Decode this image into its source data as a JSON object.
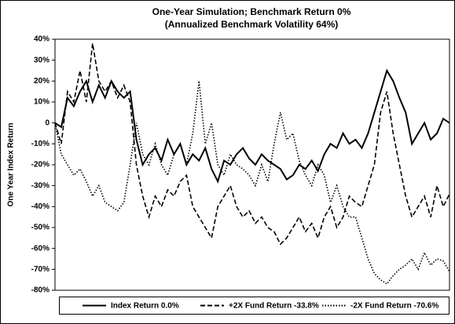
{
  "chart_data": {
    "type": "line",
    "title": "One-Year Simulation; Benchmark Return 0%",
    "subtitle": "(Annualized Benchmark Volatility 64%)",
    "y_label": "One Year Index Return",
    "categories": [
      null,
      null,
      null,
      null,
      null,
      null,
      null,
      null,
      null,
      null,
      null,
      null,
      null,
      null,
      null,
      null,
      null,
      null,
      null,
      null,
      null,
      null,
      null,
      null,
      null,
      null,
      null,
      null,
      null,
      null,
      null,
      null,
      null,
      null,
      null,
      null,
      null,
      null,
      null,
      null,
      null,
      null,
      null,
      null,
      null,
      null,
      null,
      null,
      null,
      null,
      null,
      null,
      null,
      null,
      null,
      null,
      null,
      null,
      null,
      null,
      null,
      null,
      null,
      null
    ],
    "ylim": [
      -80,
      40
    ],
    "yticks": [
      {
        "value": -80,
        "label": "-80%"
      },
      {
        "value": -70,
        "label": "-70%"
      },
      {
        "value": -60,
        "label": "-60%"
      },
      {
        "value": -50,
        "label": "-50%"
      },
      {
        "value": -40,
        "label": "-40%"
      },
      {
        "value": -30,
        "label": "-30%"
      },
      {
        "value": -20,
        "label": "-20%"
      },
      {
        "value": -10,
        "label": "-10%"
      },
      0,
      {
        "value": 10,
        "label": "10%"
      },
      {
        "value": 20,
        "label": "20%"
      },
      {
        "value": 30,
        "label": "30%"
      },
      {
        "value": 40,
        "label": "40%"
      }
    ],
    "legend": "bottom",
    "series": [
      {
        "name": "Index Return 0.0%",
        "color": "#000000",
        "style": "solid",
        "values": [
          0,
          -2,
          12,
          8,
          15,
          20,
          10,
          18,
          12,
          20,
          15,
          12,
          15,
          -8,
          -20,
          -15,
          -12,
          -18,
          -8,
          -15,
          -10,
          -20,
          -15,
          -18,
          -12,
          -22,
          -28,
          -18,
          -20,
          -15,
          -12,
          -17,
          -20,
          -15,
          -18,
          -20,
          -22,
          -27,
          -25,
          -20,
          -22,
          -18,
          -23,
          -15,
          -10,
          -12,
          -5,
          -10,
          -8,
          -12,
          -5,
          5,
          15,
          25,
          20,
          12,
          5,
          -10,
          -5,
          0,
          -8,
          -5,
          2,
          0
        ]
      },
      {
        "name": "+2X Fund Return -33.8%",
        "color": "#000000",
        "style": "dashed",
        "values": [
          0,
          -10,
          15,
          10,
          25,
          10,
          38,
          20,
          15,
          20,
          12,
          18,
          10,
          -20,
          -35,
          -45,
          -35,
          -40,
          -32,
          -35,
          -28,
          -25,
          -40,
          -45,
          -50,
          -55,
          -40,
          -35,
          -30,
          -40,
          -45,
          -42,
          -48,
          -45,
          -50,
          -52,
          -58,
          -55,
          -50,
          -45,
          -52,
          -48,
          -55,
          -45,
          -40,
          -50,
          -45,
          -35,
          -38,
          -40,
          -30,
          -20,
          5,
          15,
          -5,
          -20,
          -35,
          -45,
          -40,
          -35,
          -45,
          -30,
          -40,
          -34
        ]
      },
      {
        "name": "-2X Fund Return -70.6%",
        "color": "#000000",
        "style": "dotted",
        "values": [
          0,
          -15,
          -20,
          -25,
          -22,
          -28,
          -35,
          -30,
          -38,
          -40,
          -42,
          -38,
          -20,
          0,
          -15,
          -20,
          -10,
          -20,
          -25,
          -15,
          -10,
          -20,
          -5,
          20,
          -10,
          0,
          -20,
          -25,
          -15,
          -20,
          -22,
          -25,
          -30,
          -20,
          -28,
          -10,
          5,
          -8,
          -5,
          -18,
          -25,
          -30,
          -20,
          -25,
          -38,
          -30,
          -40,
          -45,
          -45,
          -55,
          -65,
          -72,
          -75,
          -77,
          -73,
          -70,
          -68,
          -65,
          -70,
          -62,
          -68,
          -65,
          -66,
          -71
        ]
      }
    ]
  }
}
